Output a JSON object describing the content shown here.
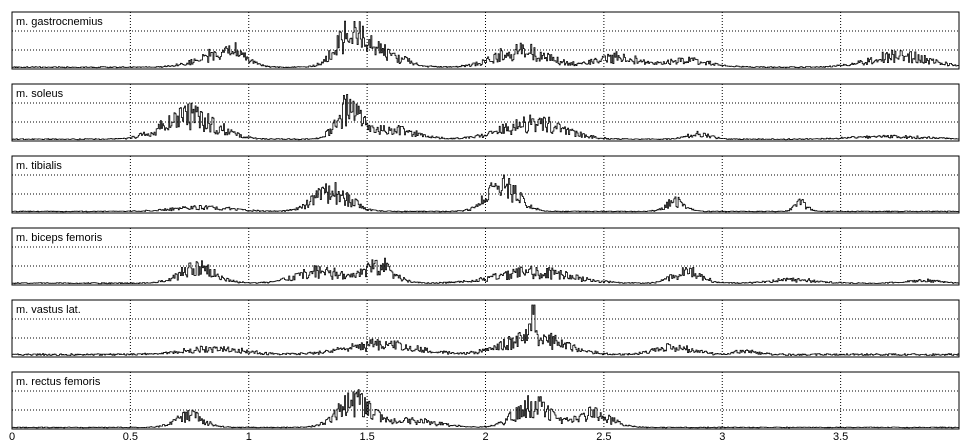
{
  "chart_data": {
    "type": "line",
    "x_range": [
      0,
      4
    ],
    "x_ticks": [
      0,
      0.5,
      1,
      1.5,
      2,
      2.5,
      3,
      3.5
    ],
    "x_tick_labels": [
      "0",
      "0.5",
      "1",
      "1.5",
      "2",
      "2.5",
      "3",
      "3.5"
    ],
    "y_range": [
      0,
      1
    ],
    "grid": true,
    "panels": [
      {
        "name": "m. gastrocnemius",
        "bursts": [
          [
            0.85,
            0.18,
            0.25
          ],
          [
            0.92,
            0.12,
            0.4
          ],
          [
            1.42,
            0.12,
            0.85
          ],
          [
            1.55,
            0.18,
            0.45
          ],
          [
            2.15,
            0.22,
            0.5
          ],
          [
            2.55,
            0.18,
            0.3
          ],
          [
            2.85,
            0.2,
            0.2
          ],
          [
            3.75,
            0.25,
            0.35
          ]
        ],
        "noise": 0.02
      },
      {
        "name": "m. soleus",
        "bursts": [
          [
            0.75,
            0.22,
            0.7
          ],
          [
            1.42,
            0.1,
            0.9
          ],
          [
            1.6,
            0.2,
            0.3
          ],
          [
            2.2,
            0.25,
            0.5
          ],
          [
            2.9,
            0.1,
            0.15
          ],
          [
            3.7,
            0.3,
            0.08
          ]
        ],
        "noise": 0.02
      },
      {
        "name": "m. tibialis",
        "bursts": [
          [
            0.8,
            0.25,
            0.12
          ],
          [
            1.35,
            0.15,
            0.6
          ],
          [
            2.07,
            0.13,
            0.75
          ],
          [
            2.8,
            0.08,
            0.3
          ],
          [
            3.33,
            0.05,
            0.28
          ]
        ],
        "noise": 0.015
      },
      {
        "name": "m. biceps femoris",
        "bursts": [
          [
            0.78,
            0.15,
            0.45
          ],
          [
            1.3,
            0.2,
            0.35
          ],
          [
            1.55,
            0.12,
            0.55
          ],
          [
            2.2,
            0.3,
            0.35
          ],
          [
            2.85,
            0.12,
            0.35
          ],
          [
            3.3,
            0.2,
            0.1
          ],
          [
            3.85,
            0.15,
            0.08
          ]
        ],
        "noise": 0.02
      },
      {
        "name": "m. vastus lat.",
        "bursts": [
          [
            0.85,
            0.25,
            0.18
          ],
          [
            1.55,
            0.3,
            0.3
          ],
          [
            2.2,
            0.25,
            0.5
          ],
          [
            2.2,
            0.02,
            0.95
          ],
          [
            2.8,
            0.15,
            0.25
          ],
          [
            3.1,
            0.1,
            0.1
          ]
        ],
        "noise": 0.035
      },
      {
        "name": "m. rectus femoris",
        "bursts": [
          [
            0.75,
            0.12,
            0.35
          ],
          [
            1.45,
            0.15,
            0.75
          ],
          [
            1.7,
            0.2,
            0.2
          ],
          [
            2.2,
            0.15,
            0.7
          ],
          [
            2.45,
            0.15,
            0.4
          ]
        ],
        "noise": 0.015
      }
    ]
  }
}
